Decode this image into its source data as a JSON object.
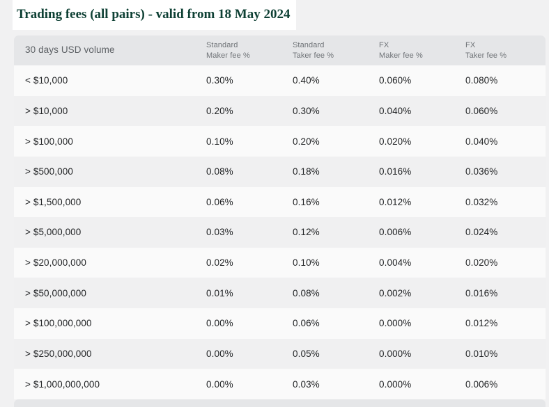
{
  "page": {
    "title": "Trading fees (all pairs) - valid from 18 May 2024",
    "colors": {
      "page_bg": "#f1f1f2",
      "title_green": "#0e4034",
      "header_bg": "#e5e6e8",
      "row_light": "#fafafa",
      "row_gray": "#f0f0f1",
      "header_text": "#6f7377",
      "cell_text": "#222426"
    }
  },
  "table": {
    "columns": [
      {
        "lines": [
          "30 days USD volume"
        ]
      },
      {
        "lines": [
          "Standard",
          "Maker fee %"
        ]
      },
      {
        "lines": [
          "Standard",
          "Taker fee %"
        ]
      },
      {
        "lines": [
          "FX",
          "Maker fee %"
        ]
      },
      {
        "lines": [
          "FX",
          "Taker fee %"
        ]
      }
    ],
    "rows": [
      {
        "volume": "< $10,000",
        "standard_maker": "0.30%",
        "standard_taker": "0.40%",
        "fx_maker": "0.060%",
        "fx_taker": "0.080%"
      },
      {
        "volume": "> $10,000",
        "standard_maker": "0.20%",
        "standard_taker": "0.30%",
        "fx_maker": "0.040%",
        "fx_taker": "0.060%"
      },
      {
        "volume": "> $100,000",
        "standard_maker": "0.10%",
        "standard_taker": "0.20%",
        "fx_maker": "0.020%",
        "fx_taker": "0.040%"
      },
      {
        "volume": "> $500,000",
        "standard_maker": "0.08%",
        "standard_taker": "0.18%",
        "fx_maker": "0.016%",
        "fx_taker": "0.036%"
      },
      {
        "volume": "> $1,500,000",
        "standard_maker": "0.06%",
        "standard_taker": "0.16%",
        "fx_maker": "0.012%",
        "fx_taker": "0.032%"
      },
      {
        "volume": "> $5,000,000",
        "standard_maker": "0.03%",
        "standard_taker": "0.12%",
        "fx_maker": "0.006%",
        "fx_taker": "0.024%"
      },
      {
        "volume": "> $20,000,000",
        "standard_maker": "0.02%",
        "standard_taker": "0.10%",
        "fx_maker": "0.004%",
        "fx_taker": "0.020%"
      },
      {
        "volume": "> $50,000,000",
        "standard_maker": "0.01%",
        "standard_taker": "0.08%",
        "fx_maker": "0.002%",
        "fx_taker": "0.016%"
      },
      {
        "volume": "> $100,000,000",
        "standard_maker": "0.00%",
        "standard_taker": "0.06%",
        "fx_maker": "0.000%",
        "fx_taker": "0.012%"
      },
      {
        "volume": "> $250,000,000",
        "standard_maker": "0.00%",
        "standard_taker": "0.05%",
        "fx_maker": "0.000%",
        "fx_taker": "0.010%"
      },
      {
        "volume": "> $1,000,000,000",
        "standard_maker": "0.00%",
        "standard_taker": "0.03%",
        "fx_maker": "0.000%",
        "fx_taker": "0.006%"
      }
    ]
  }
}
